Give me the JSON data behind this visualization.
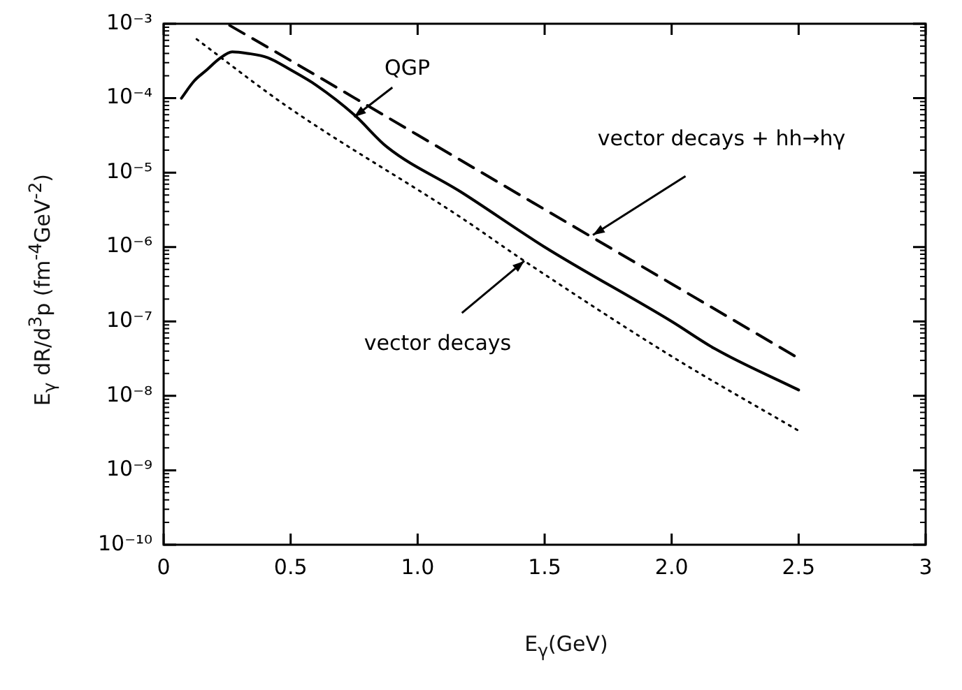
{
  "chart_data": {
    "type": "line",
    "xlabel": "E$_{γ}$(GeV)",
    "ylabel": "E$_{γ}$ dR/d$^{3}$p (fm$^{-4}$GeV$^{-2}$)",
    "log": "y",
    "grid": false,
    "legend": false,
    "marker": "none",
    "xlim": [
      0,
      3
    ],
    "xticks": [
      0,
      0.5,
      {
        "value": 1,
        "label": "1.0"
      },
      1.5,
      {
        "value": 2,
        "label": "2.0"
      },
      2.5,
      3
    ],
    "ylim": [
      1e-10,
      0.001
    ],
    "yticks": [
      {
        "value": 1e-10,
        "label": "10⁻¹⁰"
      },
      {
        "value": 1e-09,
        "label": "10⁻⁹"
      },
      {
        "value": 1e-08,
        "label": "10⁻⁸"
      },
      {
        "value": 1e-07,
        "label": "10⁻⁷"
      },
      {
        "value": 1e-06,
        "label": "10⁻⁶"
      },
      {
        "value": 1e-05,
        "label": "10⁻⁵"
      },
      {
        "value": 0.0001,
        "label": "10⁻⁴"
      },
      {
        "value": 0.001,
        "label": "10⁻³"
      }
    ],
    "series": [
      {
        "color": "#000000",
        "line_style": "solid",
        "x": [
          0.07,
          0.12,
          0.17,
          0.22,
          0.27,
          0.33,
          0.41,
          0.5,
          0.6,
          0.75,
          0.88,
          1.17,
          1.5,
          2.0,
          2.17,
          2.5
        ],
        "values": [
          0.0001,
          0.00017,
          0.00024,
          0.00034,
          0.00042,
          0.0004,
          0.00035,
          0.00024,
          0.00015,
          6e-05,
          2.2e-05,
          5.5e-06,
          1e-06,
          1e-07,
          4.3e-08,
          1.2e-08
        ]
      },
      {
        "color": "#000000",
        "line_style": "dashed",
        "x": [
          0.26,
          0.5,
          1.0,
          1.5,
          2.0,
          2.5
        ],
        "values": [
          0.00095,
          0.00032,
          3.2e-05,
          3.2e-06,
          3.2e-07,
          3.2e-08
        ]
      },
      {
        "color": "#000000",
        "line_style": "dotted",
        "x": [
          0.13,
          0.48,
          1.17,
          1.42,
          2.0,
          2.5
        ],
        "values": [
          0.00062,
          8e-05,
          2.5e-06,
          6.5e-07,
          3.4e-08,
          3.4e-09
        ]
      }
    ],
    "annotations": [
      {
        "text": "QGP",
        "x": 0.75,
        "y": 5.6e-05
      },
      {
        "text": "vector decays + hh→hγ",
        "x": 1.69,
        "y": 1.45e-06
      },
      {
        "text": "vector decays",
        "x": 1.42,
        "y": 6.5e-07
      }
    ]
  }
}
